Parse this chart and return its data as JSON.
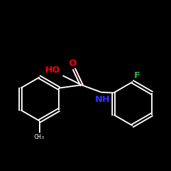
{
  "background_color": "#000000",
  "bond_color": "#ffffff",
  "atom_colors": {
    "O": "#ff0000",
    "HO": "#ff0000",
    "N": "#3333ff",
    "F": "#22bb44"
  },
  "ring_r": 1.05,
  "lw": 1.4,
  "font_size": 9.5
}
